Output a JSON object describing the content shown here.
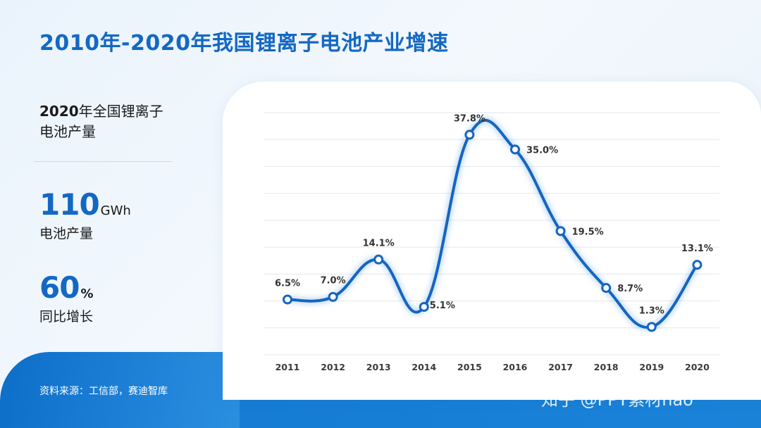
{
  "title": "2010年-2020年我国锂离子电池产业增速",
  "left": {
    "heading_year": "2020",
    "heading_rest": "年全国锂离子",
    "heading_line2": "电池产量",
    "stat1": {
      "value": "110",
      "unit": "GWh",
      "label": "电池产量"
    },
    "stat2": {
      "value": "60",
      "unit": "%",
      "label": "同比增长"
    }
  },
  "source": "资料来源：工信部，赛迪智库",
  "watermark": "知乎 @PPT素材hao",
  "colors": {
    "accent": "#1368c4",
    "line": "#1565c0",
    "band": "#1479d2"
  },
  "chart_data": {
    "type": "line",
    "categories": [
      "2011",
      "2012",
      "2013",
      "2014",
      "2015",
      "2016",
      "2017",
      "2018",
      "2019",
      "2020"
    ],
    "values": [
      6.5,
      7.0,
      14.1,
      5.1,
      37.8,
      35.0,
      19.5,
      8.7,
      1.3,
      13.1
    ],
    "data_labels": [
      "6.5%",
      "7.0%",
      "14.1%",
      "5.1%",
      "37.8%",
      "35.0%",
      "19.5%",
      "8.7%",
      "1.3%",
      "13.1%"
    ],
    "ylim": [
      -4,
      42
    ],
    "grid": true,
    "smooth": true
  }
}
